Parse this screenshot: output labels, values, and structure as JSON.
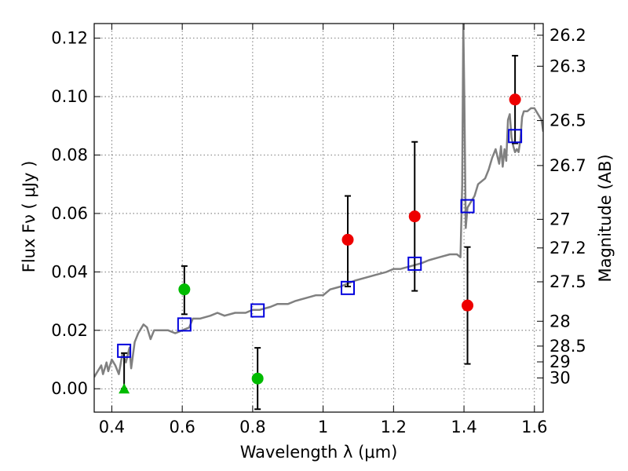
{
  "chart_data": {
    "type": "scatter",
    "xlabel": "Wavelength  λ (μm)",
    "ylabel": "Flux  Fν  ( μJy )",
    "ylabel_right": "Magnitude (AB)",
    "xlim": [
      0.35,
      1.625
    ],
    "ylim": [
      -0.008,
      0.125
    ],
    "grid": true,
    "x_ticks": [
      0.4,
      0.6,
      0.8,
      1.0,
      1.2,
      1.4,
      1.6
    ],
    "x_tick_labels": [
      "0.4",
      "0.6",
      "0.8",
      "1",
      "1.2",
      "1.4",
      "1.6"
    ],
    "y_ticks": [
      0.0,
      0.02,
      0.04,
      0.06,
      0.08,
      0.1,
      0.12
    ],
    "y_tick_labels": [
      "0.00",
      "0.02",
      "0.04",
      "0.06",
      "0.08",
      "0.10",
      "0.12"
    ],
    "right_ticks": [
      {
        "label": "26.2",
        "flux": 0.121
      },
      {
        "label": "26.3",
        "flux": 0.1104
      },
      {
        "label": "26.5",
        "flux": 0.0918
      },
      {
        "label": "26.7",
        "flux": 0.0764
      },
      {
        "label": "27",
        "flux": 0.058
      },
      {
        "label": "27.2",
        "flux": 0.0482
      },
      {
        "label": "27.5",
        "flux": 0.0366
      },
      {
        "label": "28",
        "flux": 0.0231
      },
      {
        "label": "28.5",
        "flux": 0.0146
      },
      {
        "label": "29",
        "flux": 0.0092
      },
      {
        "label": "30",
        "flux": 0.0037
      }
    ],
    "colors": {
      "green": "#00bb00",
      "red": "#ee0000",
      "blue": "#0000dd",
      "spectrum": "#808080",
      "error_bar": "#000000"
    },
    "series": [
      {
        "marker": "triangle",
        "color": "green",
        "points": [
          {
            "x": 0.435,
            "y": 0.0,
            "err_low": 0.0,
            "err_high": 0.0122
          }
        ]
      },
      {
        "marker": "circle",
        "color": "green",
        "points": [
          {
            "x": 0.606,
            "y": 0.034,
            "err_low": 0.0255,
            "err_high": 0.042
          },
          {
            "x": 0.814,
            "y": 0.0035,
            "err_low": -0.007,
            "err_high": 0.014
          }
        ]
      },
      {
        "marker": "circle",
        "color": "red",
        "points": [
          {
            "x": 1.07,
            "y": 0.051,
            "err_low": 0.035,
            "err_high": 0.066
          },
          {
            "x": 1.26,
            "y": 0.059,
            "err_low": 0.0335,
            "err_high": 0.0845
          },
          {
            "x": 1.41,
            "y": 0.0285,
            "err_low": 0.0085,
            "err_high": 0.0485
          },
          {
            "x": 1.545,
            "y": 0.099,
            "err_low": 0.084,
            "err_high": 0.114
          }
        ]
      },
      {
        "marker": "square-open",
        "color": "blue",
        "points": [
          {
            "x": 0.435,
            "y": 0.013
          },
          {
            "x": 0.606,
            "y": 0.022
          },
          {
            "x": 0.814,
            "y": 0.0268
          },
          {
            "x": 1.07,
            "y": 0.0345
          },
          {
            "x": 1.26,
            "y": 0.0428
          },
          {
            "x": 1.41,
            "y": 0.0625
          },
          {
            "x": 1.545,
            "y": 0.0865
          }
        ]
      },
      {
        "marker": "line",
        "color": "spectrum",
        "points": [
          [
            0.35,
            0.004
          ],
          [
            0.36,
            0.006
          ],
          [
            0.37,
            0.008
          ],
          [
            0.375,
            0.005
          ],
          [
            0.38,
            0.007
          ],
          [
            0.385,
            0.009
          ],
          [
            0.39,
            0.006
          ],
          [
            0.4,
            0.01
          ],
          [
            0.41,
            0.008
          ],
          [
            0.42,
            0.005
          ],
          [
            0.43,
            0.012
          ],
          [
            0.44,
            0.009
          ],
          [
            0.45,
            0.014
          ],
          [
            0.455,
            0.007
          ],
          [
            0.465,
            0.016
          ],
          [
            0.475,
            0.019
          ],
          [
            0.49,
            0.022
          ],
          [
            0.5,
            0.021
          ],
          [
            0.51,
            0.017
          ],
          [
            0.52,
            0.02
          ],
          [
            0.54,
            0.02
          ],
          [
            0.56,
            0.02
          ],
          [
            0.58,
            0.019
          ],
          [
            0.6,
            0.02
          ],
          [
            0.62,
            0.021
          ],
          [
            0.63,
            0.024
          ],
          [
            0.65,
            0.024
          ],
          [
            0.68,
            0.025
          ],
          [
            0.7,
            0.026
          ],
          [
            0.72,
            0.025
          ],
          [
            0.75,
            0.026
          ],
          [
            0.78,
            0.026
          ],
          [
            0.8,
            0.027
          ],
          [
            0.82,
            0.027
          ],
          [
            0.85,
            0.028
          ],
          [
            0.87,
            0.029
          ],
          [
            0.9,
            0.029
          ],
          [
            0.92,
            0.03
          ],
          [
            0.95,
            0.031
          ],
          [
            0.98,
            0.032
          ],
          [
            1.0,
            0.032
          ],
          [
            1.02,
            0.034
          ],
          [
            1.05,
            0.035
          ],
          [
            1.07,
            0.036
          ],
          [
            1.09,
            0.037
          ],
          [
            1.12,
            0.038
          ],
          [
            1.15,
            0.039
          ],
          [
            1.18,
            0.04
          ],
          [
            1.2,
            0.041
          ],
          [
            1.22,
            0.041
          ],
          [
            1.25,
            0.042
          ],
          [
            1.28,
            0.043
          ],
          [
            1.3,
            0.044
          ],
          [
            1.33,
            0.045
          ],
          [
            1.36,
            0.046
          ],
          [
            1.38,
            0.046
          ],
          [
            1.39,
            0.045
          ],
          [
            1.395,
            0.07
          ],
          [
            1.398,
            0.125
          ],
          [
            1.401,
            0.1
          ],
          [
            1.405,
            0.055
          ],
          [
            1.41,
            0.062
          ],
          [
            1.43,
            0.066
          ],
          [
            1.44,
            0.07
          ],
          [
            1.46,
            0.072
          ],
          [
            1.47,
            0.075
          ],
          [
            1.48,
            0.079
          ],
          [
            1.49,
            0.082
          ],
          [
            1.5,
            0.077
          ],
          [
            1.505,
            0.083
          ],
          [
            1.51,
            0.076
          ],
          [
            1.515,
            0.082
          ],
          [
            1.52,
            0.078
          ],
          [
            1.525,
            0.092
          ],
          [
            1.53,
            0.094
          ],
          [
            1.535,
            0.086
          ],
          [
            1.54,
            0.083
          ],
          [
            1.545,
            0.081
          ],
          [
            1.55,
            0.082
          ],
          [
            1.555,
            0.081
          ],
          [
            1.56,
            0.085
          ],
          [
            1.565,
            0.093
          ],
          [
            1.57,
            0.095
          ],
          [
            1.58,
            0.095
          ],
          [
            1.59,
            0.096
          ],
          [
            1.6,
            0.096
          ],
          [
            1.61,
            0.094
          ],
          [
            1.62,
            0.092
          ],
          [
            1.625,
            0.088
          ]
        ]
      }
    ]
  }
}
